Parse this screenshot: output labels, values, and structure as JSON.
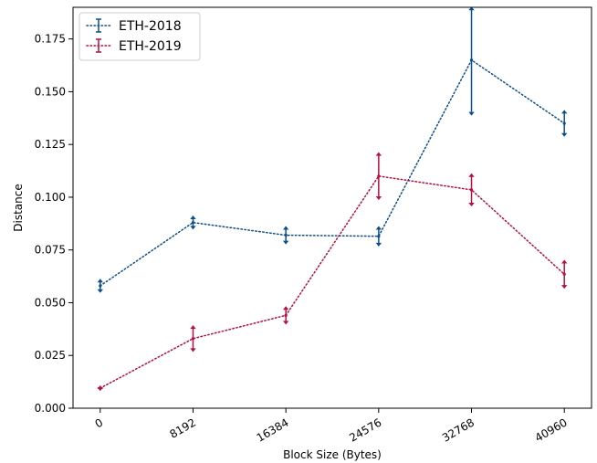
{
  "chart_data": {
    "type": "line",
    "x": [
      0,
      8192,
      16384,
      24576,
      32768,
      40960
    ],
    "x_tick_labels": [
      "0",
      "8192",
      "16384",
      "24576",
      "32768",
      "40960"
    ],
    "xlabel": "Block Size (Bytes)",
    "ylabel": "Distance",
    "ylim": [
      0.0,
      0.19
    ],
    "y_ticks": [
      0.0,
      0.025,
      0.05,
      0.075,
      0.1,
      0.125,
      0.15,
      0.175
    ],
    "y_tick_labels": [
      "0.000",
      "0.025",
      "0.050",
      "0.075",
      "0.100",
      "0.125",
      "0.150",
      "0.175"
    ],
    "grid": false,
    "legend_position": "top-left",
    "series": [
      {
        "name": "ETH-2018",
        "color": "#0b4f8a",
        "line_style": "dotted",
        "values": [
          0.058,
          0.088,
          0.082,
          0.0815,
          0.165,
          0.135
        ],
        "err_low": [
          0.055,
          0.085,
          0.078,
          0.077,
          0.139,
          0.129
        ],
        "err_high": [
          0.061,
          0.091,
          0.086,
          0.086,
          0.19,
          0.141
        ]
      },
      {
        "name": "ETH-2019",
        "color": "#b5103f",
        "line_style": "dotted",
        "values": [
          0.0095,
          0.033,
          0.044,
          0.11,
          0.1035,
          0.0635
        ],
        "err_low": [
          0.0085,
          0.027,
          0.04,
          0.099,
          0.096,
          0.057
        ],
        "err_high": [
          0.0105,
          0.039,
          0.048,
          0.121,
          0.111,
          0.07
        ]
      }
    ]
  }
}
